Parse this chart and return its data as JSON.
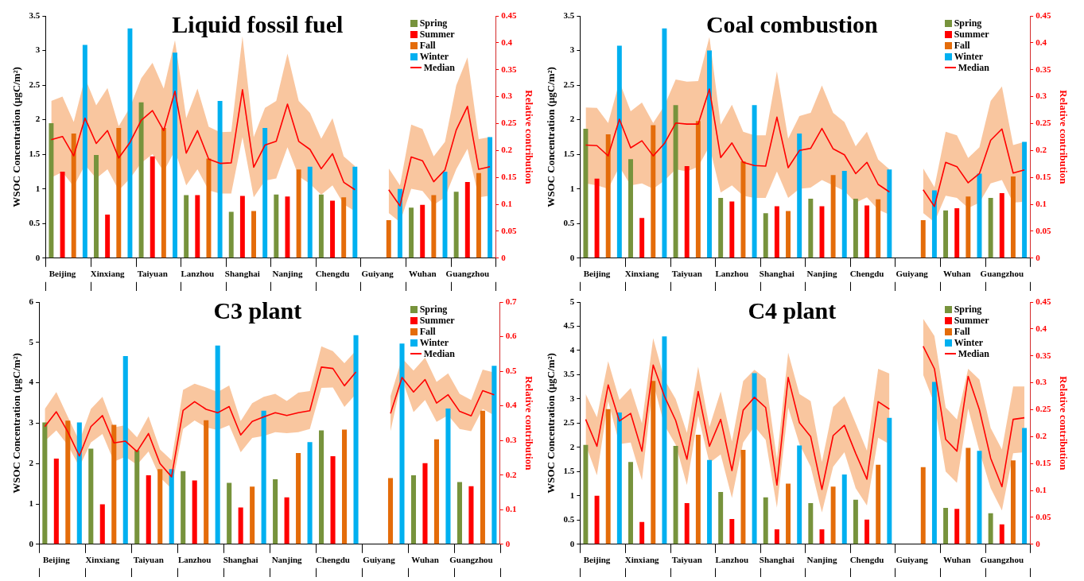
{
  "chart_data": [
    {
      "type": "bar",
      "title": "Liquid fossil fuel",
      "ylabel": "WSOC Concentration (μgC/m²)",
      "y2label": "Relative contribution",
      "legend": "top right",
      "ylim": [
        0,
        3.5
      ],
      "yticks": [
        0,
        0.5,
        1,
        1.5,
        2,
        2.5,
        3,
        3.5
      ],
      "y2lim": [
        0,
        0.45
      ],
      "y2ticks": [
        0,
        0.05,
        0.1,
        0.15,
        0.2,
        0.25,
        0.3,
        0.35,
        0.4,
        0.45
      ],
      "categories": [
        null,
        "Beijing",
        null,
        null,
        null,
        "Xinxiang",
        null,
        null,
        null,
        "Taiyuan",
        null,
        null,
        null,
        "Lanzhou",
        null,
        null,
        null,
        "Shanghai",
        null,
        null,
        null,
        "Nanjing",
        null,
        null,
        null,
        "Chengdu",
        null,
        null,
        null,
        "Guiyang",
        null,
        null,
        null,
        "Wuhan",
        null,
        null,
        null,
        "Guangzhou",
        null,
        null
      ],
      "series": [
        {
          "name": "Spring",
          "color": "#77933c",
          "values": [
            1.95,
            null,
            null,
            null,
            1.49,
            null,
            null,
            null,
            2.25,
            null,
            null,
            null,
            0.91,
            null,
            null,
            null,
            0.67,
            null,
            null,
            null,
            0.92,
            null,
            null,
            null,
            0.92,
            null,
            null,
            null,
            null,
            null,
            null,
            null,
            0.73,
            null,
            null,
            null,
            0.96,
            null,
            null,
            null
          ]
        },
        {
          "name": "Summer",
          "color": "#ff0000",
          "values": [
            null,
            1.25,
            null,
            null,
            null,
            0.63,
            null,
            null,
            null,
            1.47,
            null,
            null,
            null,
            0.91,
            null,
            null,
            null,
            0.9,
            null,
            null,
            null,
            0.89,
            null,
            null,
            null,
            0.83,
            null,
            null,
            null,
            null,
            null,
            null,
            null,
            0.77,
            null,
            null,
            null,
            1.1,
            null,
            null
          ]
        },
        {
          "name": "Fall",
          "color": "#e46c0a",
          "values": [
            null,
            null,
            1.8,
            null,
            null,
            null,
            1.88,
            null,
            null,
            null,
            1.88,
            null,
            null,
            null,
            1.44,
            null,
            null,
            null,
            0.68,
            null,
            null,
            null,
            1.28,
            null,
            null,
            null,
            0.88,
            null,
            null,
            null,
            0.55,
            null,
            null,
            null,
            0.91,
            null,
            null,
            null,
            1.23,
            null
          ]
        },
        {
          "name": "Winter",
          "color": "#00b0f0",
          "values": [
            null,
            null,
            null,
            3.08,
            null,
            null,
            null,
            3.32,
            null,
            null,
            null,
            2.97,
            null,
            null,
            null,
            2.27,
            null,
            null,
            null,
            1.88,
            null,
            null,
            null,
            1.32,
            null,
            null,
            null,
            1.32,
            null,
            null,
            null,
            1.0,
            null,
            null,
            null,
            1.25,
            null,
            null,
            null,
            1.75
          ]
        },
        {
          "name": "Median",
          "type": "line",
          "axis": "y2",
          "color": "#ff0000",
          "values": [
            0.22,
            0.226,
            0.19,
            0.26,
            0.213,
            0.237,
            0.186,
            0.215,
            0.256,
            0.274,
            0.237,
            0.31,
            0.195,
            0.237,
            0.184,
            0.176,
            0.177,
            0.313,
            0.169,
            0.21,
            0.217,
            0.286,
            0.217,
            0.202,
            0.166,
            0.194,
            0.141,
            0.127,
            null,
            null,
            0.127,
            0.097,
            0.188,
            0.181,
            0.142,
            0.164,
            0.238,
            0.282,
            0.165,
            0.17
          ],
          "upper": [
            0.292,
            0.3,
            0.253,
            0.335,
            0.284,
            0.316,
            0.245,
            0.28,
            0.334,
            0.363,
            0.315,
            0.405,
            0.26,
            0.315,
            0.244,
            0.234,
            0.235,
            0.412,
            0.225,
            0.279,
            0.292,
            0.38,
            0.292,
            0.27,
            0.222,
            0.26,
            0.189,
            0.171,
            null,
            null,
            0.167,
            0.135,
            0.248,
            0.24,
            0.189,
            0.216,
            0.321,
            0.373,
            0.221,
            0.225
          ],
          "lower": [
            0.15,
            0.16,
            0.133,
            0.173,
            0.148,
            0.165,
            0.126,
            0.148,
            0.177,
            0.193,
            0.161,
            0.2,
            0.135,
            0.165,
            0.126,
            0.12,
            0.12,
            0.225,
            0.113,
            0.144,
            0.148,
            0.206,
            0.152,
            0.138,
            0.118,
            0.135,
            0.1,
            0.087,
            null,
            null,
            0.084,
            0.067,
            0.129,
            0.125,
            0.099,
            0.113,
            0.165,
            0.203,
            0.113,
            0.116
          ]
        }
      ]
    },
    {
      "type": "bar",
      "title": "Coal combustion",
      "ylabel": "WSOC Concentration (μgC/m²)",
      "y2label": "Relative contribution",
      "legend": "top right",
      "ylim": [
        0,
        3.5
      ],
      "yticks": [
        0,
        0.5,
        1,
        1.5,
        2,
        2.5,
        3,
        3.5
      ],
      "y2lim": [
        0,
        0.45
      ],
      "y2ticks": [
        0,
        0.05,
        0.1,
        0.15,
        0.2,
        0.25,
        0.3,
        0.35,
        0.4,
        0.45
      ],
      "categories": [
        null,
        "Beijing",
        null,
        null,
        null,
        "Xinxiang",
        null,
        null,
        null,
        "Taiyuan",
        null,
        null,
        null,
        "Lanzhou",
        null,
        null,
        null,
        "Shanghai",
        null,
        null,
        null,
        "Nanjing",
        null,
        null,
        null,
        "Chengdu",
        null,
        null,
        null,
        "Guiyang",
        null,
        null,
        null,
        "Wuhan",
        null,
        null,
        null,
        "Guangzhou",
        null,
        null
      ],
      "series": [
        {
          "name": "Spring",
          "color": "#77933c",
          "values": [
            1.87,
            null,
            null,
            null,
            1.43,
            null,
            null,
            null,
            2.21,
            null,
            null,
            null,
            0.87,
            null,
            null,
            null,
            0.65,
            null,
            null,
            null,
            0.86,
            null,
            null,
            null,
            0.86,
            null,
            null,
            null,
            null,
            null,
            null,
            null,
            0.69,
            null,
            null,
            null,
            0.87,
            null,
            null,
            null
          ]
        },
        {
          "name": "Summer",
          "color": "#ff0000",
          "values": [
            null,
            1.15,
            null,
            null,
            null,
            0.58,
            null,
            null,
            null,
            1.33,
            null,
            null,
            null,
            0.82,
            null,
            null,
            null,
            0.75,
            null,
            null,
            null,
            0.75,
            null,
            null,
            null,
            0.76,
            null,
            null,
            null,
            null,
            null,
            null,
            null,
            0.72,
            null,
            null,
            null,
            0.94,
            null,
            null
          ]
        },
        {
          "name": "Fall",
          "color": "#e46c0a",
          "values": [
            null,
            null,
            1.79,
            null,
            null,
            null,
            1.92,
            null,
            null,
            null,
            1.98,
            null,
            null,
            null,
            1.4,
            null,
            null,
            null,
            0.68,
            null,
            null,
            null,
            1.2,
            null,
            null,
            null,
            0.85,
            null,
            null,
            null,
            0.55,
            null,
            null,
            null,
            0.89,
            null,
            null,
            null,
            1.18,
            null
          ]
        },
        {
          "name": "Winter",
          "color": "#00b0f0",
          "values": [
            null,
            null,
            null,
            3.07,
            null,
            null,
            null,
            3.32,
            null,
            null,
            null,
            3.0,
            null,
            null,
            null,
            2.21,
            null,
            null,
            null,
            1.8,
            null,
            null,
            null,
            1.26,
            null,
            null,
            null,
            1.28,
            null,
            null,
            null,
            0.98,
            null,
            null,
            null,
            1.22,
            null,
            null,
            null,
            1.68
          ]
        },
        {
          "name": "Median",
          "type": "line",
          "axis": "y2",
          "color": "#ff0000",
          "values": [
            0.21,
            0.209,
            0.19,
            0.258,
            0.205,
            0.218,
            0.19,
            0.213,
            0.251,
            0.249,
            0.249,
            0.314,
            0.187,
            0.214,
            0.178,
            0.172,
            0.171,
            0.262,
            0.168,
            0.2,
            0.204,
            0.241,
            0.203,
            0.192,
            0.157,
            0.178,
            0.137,
            0.123,
            null,
            null,
            0.127,
            0.096,
            0.178,
            0.17,
            0.14,
            0.157,
            0.219,
            0.24,
            0.158,
            0.164
          ],
          "upper": [
            0.28,
            0.279,
            0.251,
            0.328,
            0.273,
            0.289,
            0.251,
            0.283,
            0.332,
            0.328,
            0.329,
            0.411,
            0.248,
            0.285,
            0.235,
            0.228,
            0.228,
            0.347,
            0.222,
            0.264,
            0.27,
            0.321,
            0.27,
            0.253,
            0.208,
            0.235,
            0.183,
            0.165,
            null,
            null,
            0.167,
            0.132,
            0.235,
            0.228,
            0.186,
            0.206,
            0.292,
            0.319,
            0.21,
            0.216
          ],
          "lower": [
            0.139,
            0.135,
            0.129,
            0.17,
            0.135,
            0.139,
            0.129,
            0.144,
            0.165,
            0.161,
            0.17,
            0.208,
            0.122,
            0.135,
            0.116,
            0.112,
            0.112,
            0.161,
            0.112,
            0.129,
            0.131,
            0.145,
            0.135,
            0.125,
            0.103,
            0.113,
            0.09,
            0.081,
            null,
            null,
            0.084,
            0.067,
            0.116,
            0.112,
            0.093,
            0.103,
            0.139,
            0.145,
            0.103,
            0.105
          ]
        }
      ]
    },
    {
      "type": "bar",
      "title": "C3 plant",
      "ylabel": "WSOC Concentration (μgC/m²)",
      "y2label": "Relative contribution",
      "legend": "top right",
      "ylim": [
        0,
        6
      ],
      "yticks": [
        0,
        1,
        2,
        3,
        4,
        5,
        6
      ],
      "y2lim": [
        0,
        0.7
      ],
      "y2ticks": [
        0,
        0.1,
        0.2,
        0.3,
        0.4,
        0.5,
        0.6,
        0.7
      ],
      "categories": [
        null,
        "Beijing",
        null,
        null,
        null,
        "Xinxiang",
        null,
        null,
        null,
        "Taiyuan",
        null,
        null,
        null,
        "Lanzhou",
        null,
        null,
        null,
        "Shanghai",
        null,
        null,
        null,
        "Nanjing",
        null,
        null,
        null,
        "Chengdu",
        null,
        null,
        null,
        "Guiyang",
        null,
        null,
        null,
        "Wuhan",
        null,
        null,
        null,
        "Guangzhou",
        null,
        null
      ],
      "series": [
        {
          "name": "Spring",
          "color": "#77933c",
          "values": [
            3.02,
            null,
            null,
            null,
            2.37,
            null,
            null,
            null,
            2.33,
            null,
            null,
            null,
            1.81,
            null,
            null,
            null,
            1.52,
            null,
            null,
            null,
            1.61,
            null,
            null,
            null,
            2.82,
            null,
            null,
            null,
            null,
            null,
            null,
            null,
            1.71,
            null,
            null,
            null,
            1.54,
            null,
            null,
            null
          ]
        },
        {
          "name": "Summer",
          "color": "#ff0000",
          "values": [
            null,
            2.12,
            null,
            null,
            null,
            0.99,
            null,
            null,
            null,
            1.71,
            null,
            null,
            null,
            1.58,
            null,
            null,
            null,
            0.91,
            null,
            null,
            null,
            1.16,
            null,
            null,
            null,
            2.18,
            null,
            null,
            null,
            null,
            null,
            null,
            null,
            2.01,
            null,
            null,
            null,
            1.44,
            null,
            null
          ]
        },
        {
          "name": "Fall",
          "color": "#e46c0a",
          "values": [
            null,
            null,
            3.06,
            null,
            null,
            null,
            2.96,
            null,
            null,
            null,
            1.86,
            null,
            null,
            null,
            3.07,
            null,
            null,
            null,
            1.43,
            null,
            null,
            null,
            2.26,
            null,
            null,
            null,
            2.84,
            null,
            null,
            null,
            1.64,
            null,
            null,
            null,
            2.6,
            null,
            null,
            null,
            3.31,
            null
          ]
        },
        {
          "name": "Winter",
          "color": "#00b0f0",
          "values": [
            null,
            null,
            null,
            3.02,
            null,
            null,
            null,
            4.66,
            null,
            null,
            null,
            1.86,
            null,
            null,
            null,
            4.92,
            null,
            null,
            null,
            3.31,
            null,
            null,
            null,
            2.53,
            null,
            null,
            null,
            5.18,
            null,
            null,
            null,
            4.97,
            null,
            null,
            null,
            3.36,
            null,
            null,
            null,
            4.42
          ]
        },
        {
          "name": "Median",
          "type": "line",
          "axis": "y2",
          "color": "#ff0000",
          "values": [
            0.34,
            0.383,
            0.325,
            0.255,
            0.34,
            0.372,
            0.293,
            0.298,
            0.268,
            0.32,
            0.233,
            0.195,
            0.387,
            0.412,
            0.39,
            0.38,
            0.398,
            0.316,
            0.355,
            0.368,
            0.38,
            0.372,
            0.38,
            0.386,
            0.512,
            0.508,
            0.458,
            0.498,
            null,
            null,
            0.378,
            0.482,
            0.44,
            0.476,
            0.408,
            0.432,
            0.384,
            0.371,
            0.444,
            0.432
          ],
          "upper": [
            0.391,
            0.44,
            0.368,
            0.298,
            0.391,
            0.426,
            0.338,
            0.344,
            0.309,
            0.37,
            0.274,
            0.243,
            0.446,
            0.464,
            0.453,
            0.44,
            0.459,
            0.356,
            0.408,
            0.426,
            0.435,
            0.414,
            0.438,
            0.443,
            0.572,
            0.558,
            0.523,
            0.56,
            null,
            null,
            0.428,
            0.537,
            0.502,
            0.539,
            0.469,
            0.494,
            0.435,
            0.417,
            0.505,
            0.496
          ],
          "lower": [
            0.298,
            0.329,
            0.286,
            0.224,
            0.294,
            0.319,
            0.239,
            0.253,
            0.23,
            0.268,
            0.193,
            0.161,
            0.333,
            0.358,
            0.338,
            0.33,
            0.344,
            0.266,
            0.307,
            0.313,
            0.324,
            0.321,
            0.324,
            0.333,
            0.452,
            0.453,
            0.397,
            0.434,
            null,
            null,
            0.327,
            0.478,
            0.382,
            0.417,
            0.354,
            0.373,
            0.333,
            0.327,
            0.391,
            0.373
          ]
        }
      ]
    },
    {
      "type": "bar",
      "title": "C4 plant",
      "ylabel": "WSOC Concentration (μgC/m²)",
      "y2label": "Relative contribution",
      "legend": "top right",
      "ylim": [
        0,
        5
      ],
      "yticks": [
        0,
        0.5,
        1,
        1.5,
        2,
        2.5,
        3,
        3.5,
        4,
        4.5,
        5
      ],
      "y2lim": [
        0,
        0.45
      ],
      "y2ticks": [
        0,
        0.05,
        0.1,
        0.15,
        0.2,
        0.25,
        0.3,
        0.35,
        0.4,
        0.45
      ],
      "categories": [
        null,
        "Beijing",
        null,
        null,
        null,
        "Xinxiang",
        null,
        null,
        null,
        "Taiyuan",
        null,
        null,
        null,
        "Lanzhou",
        null,
        null,
        null,
        "Shanghai",
        null,
        null,
        null,
        "Nanjing",
        null,
        null,
        null,
        "Chengdu",
        null,
        null,
        null,
        "Guiyang",
        null,
        null,
        null,
        "Wuhan",
        null,
        null,
        null,
        "Guangzhou",
        null,
        null
      ],
      "series": [
        {
          "name": "Spring",
          "color": "#77933c",
          "values": [
            2.05,
            null,
            null,
            null,
            1.7,
            null,
            null,
            null,
            2.03,
            null,
            null,
            null,
            1.08,
            null,
            null,
            null,
            0.97,
            null,
            null,
            null,
            0.85,
            null,
            null,
            null,
            0.92,
            null,
            null,
            null,
            null,
            null,
            null,
            null,
            0.75,
            null,
            null,
            null,
            0.64,
            null,
            null,
            null
          ]
        },
        {
          "name": "Summer",
          "color": "#ff0000",
          "values": [
            null,
            1.0,
            null,
            null,
            null,
            0.46,
            null,
            null,
            null,
            0.85,
            null,
            null,
            null,
            0.52,
            null,
            null,
            null,
            0.31,
            null,
            null,
            null,
            0.31,
            null,
            null,
            null,
            0.51,
            null,
            null,
            null,
            null,
            null,
            null,
            null,
            0.73,
            null,
            null,
            null,
            0.41,
            null,
            null
          ]
        },
        {
          "name": "Fall",
          "color": "#e46c0a",
          "values": [
            null,
            null,
            2.79,
            null,
            null,
            null,
            3.37,
            null,
            null,
            null,
            2.26,
            null,
            null,
            null,
            1.95,
            null,
            null,
            null,
            1.25,
            null,
            null,
            null,
            1.19,
            null,
            null,
            null,
            1.64,
            null,
            null,
            null,
            1.59,
            null,
            null,
            null,
            1.99,
            null,
            null,
            null,
            1.73,
            null
          ]
        },
        {
          "name": "Winter",
          "color": "#00b0f0",
          "values": [
            null,
            null,
            null,
            2.72,
            null,
            null,
            null,
            4.29,
            null,
            null,
            null,
            1.74,
            null,
            null,
            null,
            3.53,
            null,
            null,
            null,
            2.04,
            null,
            null,
            null,
            1.44,
            null,
            null,
            null,
            2.61,
            null,
            null,
            null,
            3.35,
            null,
            null,
            null,
            1.93,
            null,
            null,
            null,
            2.4
          ]
        },
        {
          "name": "Median",
          "type": "line",
          "axis": "y2",
          "color": "#ff0000",
          "values": [
            0.232,
            0.182,
            0.296,
            0.229,
            0.243,
            0.173,
            0.333,
            0.275,
            0.23,
            0.158,
            0.284,
            0.182,
            0.232,
            0.137,
            0.249,
            0.273,
            0.254,
            0.11,
            0.31,
            0.226,
            0.2,
            0.102,
            0.202,
            0.221,
            0.169,
            0.121,
            0.265,
            0.251,
            null,
            null,
            0.368,
            0.326,
            0.195,
            0.173,
            0.312,
            0.25,
            0.16,
            0.107,
            0.232,
            0.235
          ],
          "upper": [
            0.279,
            0.236,
            0.34,
            0.268,
            0.29,
            0.225,
            0.383,
            0.306,
            0.27,
            0.207,
            0.33,
            0.218,
            0.284,
            0.191,
            0.303,
            0.324,
            0.308,
            0.158,
            0.356,
            0.279,
            0.266,
            0.153,
            0.255,
            0.275,
            0.225,
            0.174,
            0.326,
            0.317,
            null,
            null,
            0.419,
            0.387,
            0.254,
            0.232,
            0.326,
            0.306,
            0.216,
            0.176,
            0.293,
            0.293
          ],
          "lower": [
            0.185,
            0.128,
            0.266,
            0.186,
            0.189,
            0.119,
            0.3,
            0.221,
            0.185,
            0.11,
            0.239,
            0.151,
            0.167,
            0.086,
            0.189,
            0.219,
            0.194,
            0.068,
            0.254,
            0.186,
            0.144,
            0.059,
            0.144,
            0.171,
            0.104,
            0.072,
            0.198,
            0.186,
            null,
            null,
            0.315,
            0.261,
            0.135,
            0.114,
            0.252,
            0.173,
            0.104,
            0.063,
            0.169,
            0.171
          ]
        }
      ]
    }
  ]
}
